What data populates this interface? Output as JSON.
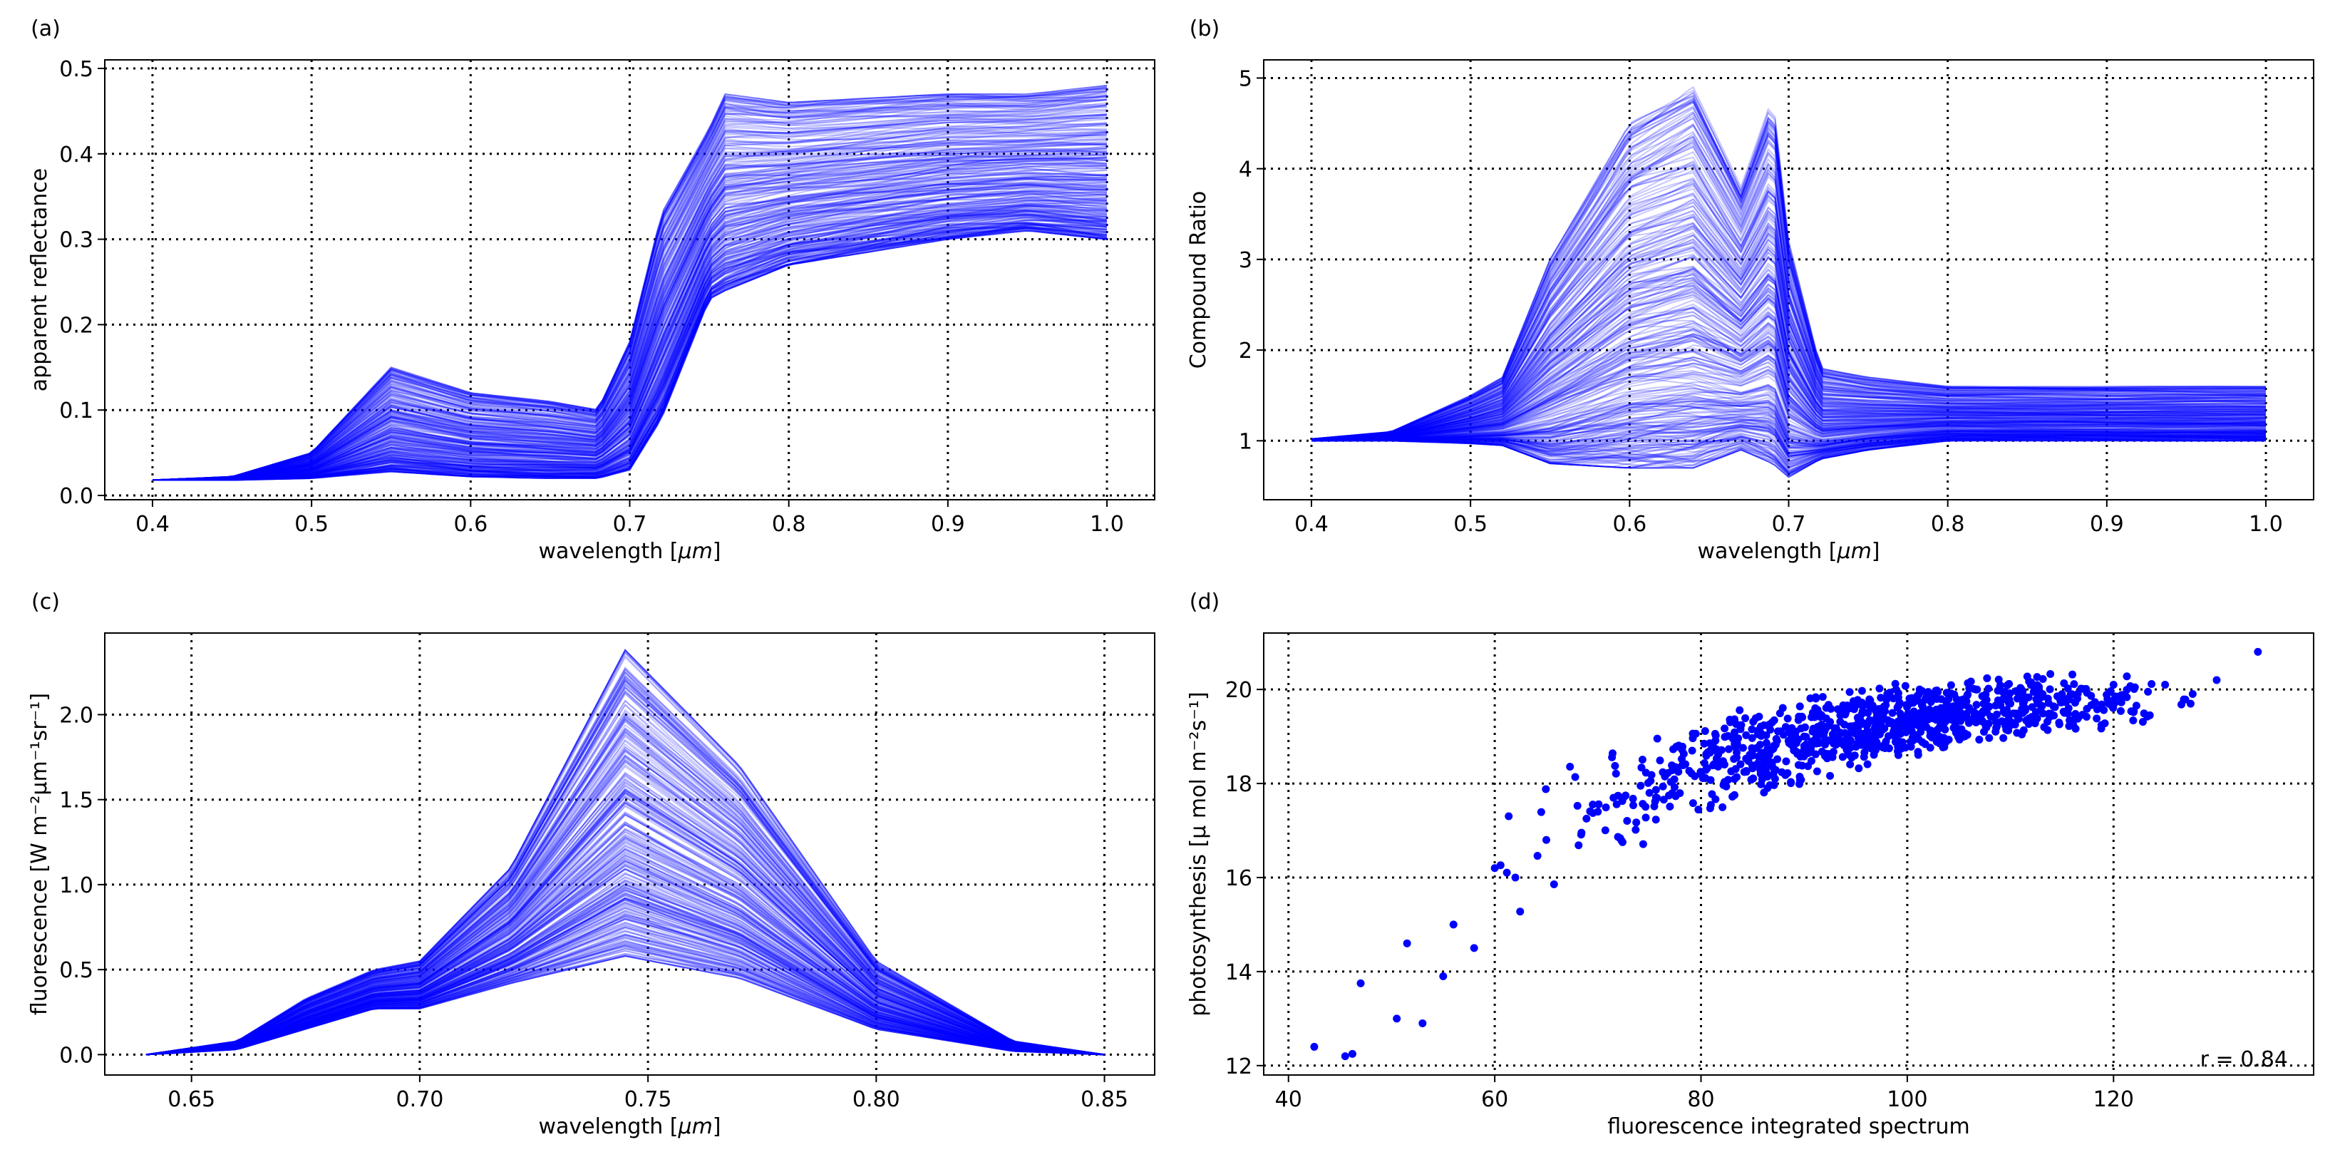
{
  "line_color": "#0000ff",
  "text_color": "#000000",
  "grid_color": "#000000",
  "chart_data": [
    {
      "id": "a",
      "panel_label": "(a)",
      "type": "line",
      "xlabel_text": "wavelength [",
      "xlabel_unit": "μm",
      "xlabel_tail": "]",
      "ylabel": "apparent reflectance",
      "xlim": [
        0.37,
        1.03
      ],
      "ylim": [
        -0.005,
        0.51
      ],
      "xticks": [
        0.4,
        0.5,
        0.6,
        0.7,
        0.8,
        0.9,
        1.0
      ],
      "xtick_labels": [
        "0.4",
        "0.5",
        "0.6",
        "0.7",
        "0.8",
        "0.9",
        "1.0"
      ],
      "yticks": [
        0.0,
        0.1,
        0.2,
        0.3,
        0.4,
        0.5
      ],
      "ytick_labels": [
        "0.0",
        "0.1",
        "0.2",
        "0.3",
        "0.4",
        "0.5"
      ],
      "grid": true,
      "series_count": 300,
      "envelope": {
        "x": [
          0.4,
          0.45,
          0.5,
          0.55,
          0.6,
          0.65,
          0.68,
          0.7,
          0.72,
          0.75,
          0.76,
          0.8,
          0.9,
          0.95,
          1.0
        ],
        "lower": [
          0.018,
          0.018,
          0.02,
          0.028,
          0.022,
          0.02,
          0.02,
          0.03,
          0.09,
          0.23,
          0.24,
          0.27,
          0.3,
          0.31,
          0.3
        ],
        "upper": [
          0.018,
          0.022,
          0.05,
          0.15,
          0.12,
          0.11,
          0.1,
          0.18,
          0.33,
          0.43,
          0.47,
          0.46,
          0.47,
          0.47,
          0.48
        ]
      }
    },
    {
      "id": "b",
      "panel_label": "(b)",
      "type": "line",
      "xlabel_text": "wavelength [",
      "xlabel_unit": "μm",
      "xlabel_tail": "]",
      "ylabel": "Compound Ratio",
      "xlim": [
        0.37,
        1.03
      ],
      "ylim": [
        0.35,
        5.2
      ],
      "xticks": [
        0.4,
        0.5,
        0.6,
        0.7,
        0.8,
        0.9,
        1.0
      ],
      "xtick_labels": [
        "0.4",
        "0.5",
        "0.6",
        "0.7",
        "0.8",
        "0.9",
        "1.0"
      ],
      "yticks": [
        1,
        2,
        3,
        4,
        5
      ],
      "ytick_labels": [
        "1",
        "2",
        "3",
        "4",
        "5"
      ],
      "grid": true,
      "series_count": 300,
      "envelope": {
        "x": [
          0.4,
          0.45,
          0.5,
          0.52,
          0.55,
          0.6,
          0.64,
          0.67,
          0.69,
          0.7,
          0.72,
          0.75,
          0.8,
          0.9,
          1.0
        ],
        "lower": [
          1.0,
          1.0,
          0.97,
          0.95,
          0.75,
          0.7,
          0.7,
          0.9,
          0.75,
          0.6,
          0.8,
          0.9,
          1.0,
          1.0,
          1.0
        ],
        "upper": [
          1.02,
          1.1,
          1.5,
          1.7,
          3.0,
          4.5,
          4.9,
          3.8,
          4.8,
          3.2,
          1.8,
          1.7,
          1.6,
          1.6,
          1.6
        ]
      }
    },
    {
      "id": "c",
      "panel_label": "(c)",
      "type": "line",
      "xlabel_text": "wavelength [",
      "xlabel_unit": "μm",
      "xlabel_tail": "]",
      "ylabel": "fluorescence [W m⁻²μm⁻¹sr⁻¹]",
      "xlim": [
        0.631,
        0.861
      ],
      "ylim": [
        -0.12,
        2.48
      ],
      "xticks": [
        0.65,
        0.7,
        0.75,
        0.8,
        0.85
      ],
      "xtick_labels": [
        "0.65",
        "0.70",
        "0.75",
        "0.80",
        "0.85"
      ],
      "yticks": [
        0.0,
        0.5,
        1.0,
        1.5,
        2.0
      ],
      "ytick_labels": [
        "0.0",
        "0.5",
        "1.0",
        "1.5",
        "2.0"
      ],
      "grid": true,
      "series_count": 300,
      "envelope": {
        "x": [
          0.64,
          0.66,
          0.675,
          0.69,
          0.7,
          0.72,
          0.745,
          0.77,
          0.8,
          0.83,
          0.85
        ],
        "lower": [
          0.0,
          0.03,
          0.15,
          0.27,
          0.27,
          0.42,
          0.58,
          0.45,
          0.15,
          0.02,
          0.0
        ],
        "upper": [
          0.0,
          0.08,
          0.33,
          0.5,
          0.55,
          1.1,
          2.38,
          1.7,
          0.55,
          0.08,
          0.0
        ]
      }
    },
    {
      "id": "d",
      "panel_label": "(d)",
      "type": "scatter",
      "xlabel": "fluorescence integrated spectrum",
      "ylabel": "photosynthesis [μ mol m⁻²s⁻¹]",
      "xlim": [
        37.6,
        139.4
      ],
      "ylim": [
        11.8,
        21.2
      ],
      "xticks": [
        40,
        60,
        80,
        100,
        120
      ],
      "xtick_labels": [
        "40",
        "60",
        "80",
        "100",
        "120"
      ],
      "yticks": [
        12,
        14,
        16,
        18,
        20
      ],
      "ytick_labels": [
        "12",
        "14",
        "16",
        "18",
        "20"
      ],
      "grid": true,
      "annotation": "r = 0.84",
      "point_count": 1000,
      "sample_points": {
        "x": [
          42.5,
          45.5,
          46.2,
          47,
          50.5,
          51.5,
          53,
          55,
          56,
          58,
          60,
          62,
          65,
          70,
          75,
          80,
          85,
          90,
          95,
          100,
          105,
          110,
          115,
          120,
          125,
          130,
          134
        ],
        "y": [
          12.4,
          12.2,
          12.25,
          13.75,
          13.0,
          14.6,
          12.9,
          13.9,
          15.0,
          14.5,
          16.2,
          16.0,
          16.8,
          17.4,
          17.8,
          18.2,
          18.7,
          19.0,
          19.2,
          19.4,
          19.6,
          19.7,
          19.9,
          20.1,
          20.1,
          20.2,
          20.8
        ]
      }
    }
  ]
}
